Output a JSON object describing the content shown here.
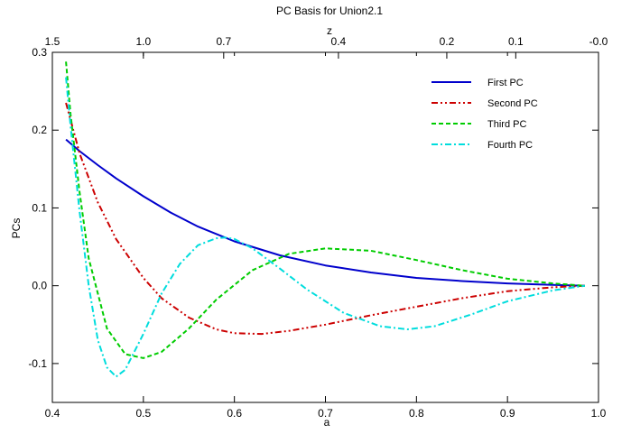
{
  "chart_data": {
    "type": "line",
    "title": "PC Basis for Union2.1",
    "xlabel": "a",
    "ylabel": "PCs",
    "x2label": "z",
    "xlim": [
      0.4,
      1.0
    ],
    "ylim": [
      -0.15,
      0.3
    ],
    "x_ticks": [
      0.4,
      0.5,
      0.6,
      0.7,
      0.8,
      0.9,
      1.0
    ],
    "x_tick_labels": [
      "0.4",
      "0.5",
      "0.6",
      "0.7",
      "0.8",
      "0.9",
      "1.0"
    ],
    "y_ticks": [
      -0.1,
      0.0,
      0.1,
      0.2,
      0.3
    ],
    "y_tick_labels": [
      "-0.1",
      "0.0",
      "0.1",
      "0.2",
      "0.3"
    ],
    "z_ticks": [
      1.5,
      1.0,
      0.7,
      0.4,
      0.2,
      0.1,
      0.0
    ],
    "z_tick_labels": [
      "1.5",
      "1.0",
      "0.7",
      "0.4",
      "0.2",
      "0.1",
      "-0.0"
    ],
    "grid": false,
    "legend_position": "top-right",
    "series": [
      {
        "name": "First PC",
        "color": "#0000cc",
        "dash": "solid",
        "x": [
          0.415,
          0.43,
          0.45,
          0.47,
          0.5,
          0.53,
          0.56,
          0.6,
          0.65,
          0.7,
          0.75,
          0.8,
          0.85,
          0.9,
          0.95,
          0.985
        ],
        "y": [
          0.188,
          0.173,
          0.155,
          0.138,
          0.115,
          0.094,
          0.076,
          0.057,
          0.039,
          0.026,
          0.017,
          0.01,
          0.006,
          0.003,
          0.001,
          0.0
        ]
      },
      {
        "name": "Second PC",
        "color": "#cc0000",
        "dash": "dash-dot-dot",
        "x": [
          0.415,
          0.43,
          0.45,
          0.47,
          0.5,
          0.52,
          0.55,
          0.58,
          0.6,
          0.63,
          0.66,
          0.7,
          0.75,
          0.8,
          0.85,
          0.9,
          0.95,
          0.985
        ],
        "y": [
          0.235,
          0.17,
          0.107,
          0.06,
          0.01,
          -0.016,
          -0.041,
          -0.056,
          -0.061,
          -0.062,
          -0.058,
          -0.05,
          -0.038,
          -0.027,
          -0.016,
          -0.007,
          -0.002,
          0.0
        ]
      },
      {
        "name": "Third PC",
        "color": "#00cc00",
        "dash": "dashed",
        "x": [
          0.415,
          0.42,
          0.43,
          0.44,
          0.46,
          0.48,
          0.5,
          0.52,
          0.55,
          0.58,
          0.62,
          0.66,
          0.7,
          0.75,
          0.8,
          0.85,
          0.9,
          0.95,
          0.985
        ],
        "y": [
          0.288,
          0.22,
          0.12,
          0.035,
          -0.055,
          -0.088,
          -0.093,
          -0.085,
          -0.055,
          -0.018,
          0.02,
          0.041,
          0.048,
          0.045,
          0.033,
          0.02,
          0.009,
          0.003,
          0.0
        ]
      },
      {
        "name": "Fourth PC",
        "color": "#00dddd",
        "dash": "dash-dot",
        "x": [
          0.415,
          0.42,
          0.43,
          0.44,
          0.45,
          0.46,
          0.47,
          0.48,
          0.5,
          0.52,
          0.54,
          0.56,
          0.58,
          0.59,
          0.6,
          0.62,
          0.65,
          0.68,
          0.72,
          0.76,
          0.79,
          0.82,
          0.86,
          0.9,
          0.95,
          0.985
        ],
        "y": [
          0.268,
          0.205,
          0.095,
          0.0,
          -0.07,
          -0.105,
          -0.117,
          -0.108,
          -0.062,
          -0.01,
          0.028,
          0.052,
          0.061,
          0.062,
          0.06,
          0.048,
          0.022,
          -0.005,
          -0.035,
          -0.052,
          -0.056,
          -0.052,
          -0.037,
          -0.02,
          -0.006,
          0.0
        ]
      }
    ]
  }
}
